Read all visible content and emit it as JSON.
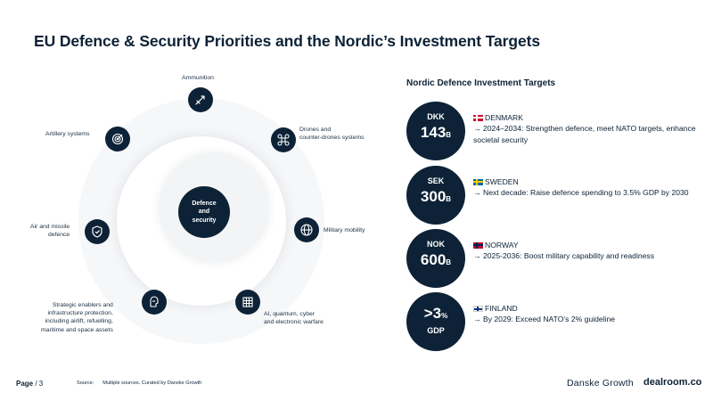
{
  "title": "EU Defence & Security Priorities and the Nordic’s Investment Targets",
  "core": {
    "label": "Defence\nand\nsecurity"
  },
  "priorities": {
    "ammunition": {
      "label": "Ammunition",
      "icon": "missile-icon"
    },
    "drones": {
      "label": "Drones and\ncounter-drones systems",
      "icon": "drone-icon"
    },
    "military_mobility": {
      "label": "Military mobility",
      "icon": "globe-icon"
    },
    "ai_quantum": {
      "label": "AI, quantum, cyber\nand electronic warfare",
      "icon": "circuit-grid-icon"
    },
    "strategic_enablers": {
      "label": "Strategic enablers and\ninfrastructure protection,\nincluding airlift, refuelling,\nmaritime and space assets",
      "icon": "helmet-icon"
    },
    "air_missile": {
      "label": "Air and missile\ndefence",
      "icon": "shield-icon"
    },
    "artillery": {
      "label": "Artillery systems",
      "icon": "target-icon"
    }
  },
  "nordic": {
    "title": "Nordic Defence Investment Targets",
    "targets": [
      {
        "currency": "DKK",
        "amount": "143",
        "unit": "B",
        "country": "DENMARK",
        "text": "→  2024–2034: Strengthen defence, meet NATO targets, enhance societal security"
      },
      {
        "currency": "SEK",
        "amount": "300",
        "unit": "B",
        "country": "SWEDEN",
        "text": "→ Next decade: Raise defence spending to 3.5% GDP by 2030"
      },
      {
        "currency": "NOK",
        "amount": "600",
        "unit": "B",
        "country": "NORWAY",
        "text": "→ 2025-2036: Boost military capability and readiness"
      },
      {
        "currency": "GDP",
        "amount": ">3",
        "unit": "%",
        "country": "FINLAND",
        "text": "→ By 2029: Exceed NATO’s 2% guideline"
      }
    ]
  },
  "footer": {
    "page_label": "Page",
    "page_number": "/ 3",
    "source_label": "Source:",
    "source_text": "Multiple sources. Curated by Danske Growth",
    "brand1": "Danske Growth",
    "brand2": "dealroom.co"
  },
  "colors": {
    "navy": "#0d2236",
    "ring": "#f6f7f9"
  }
}
